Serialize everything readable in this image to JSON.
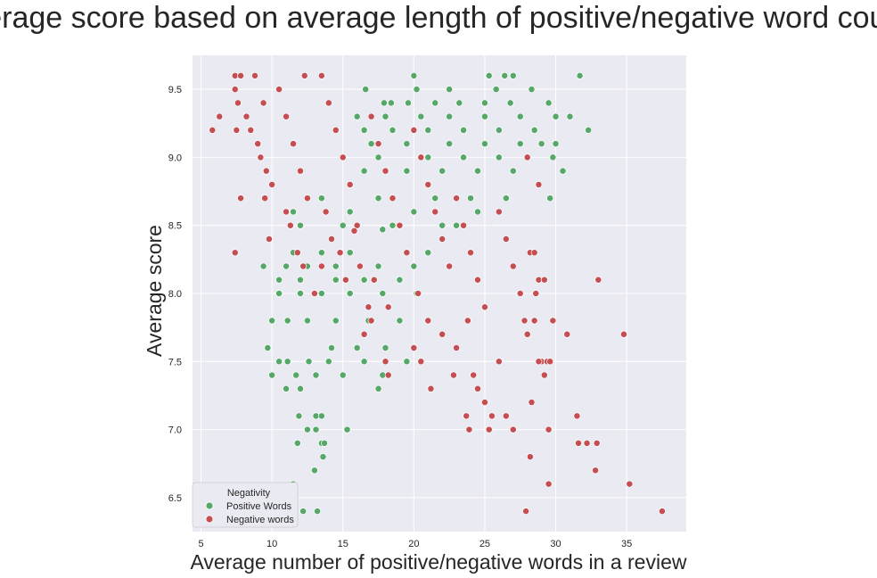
{
  "chart_data": {
    "type": "scatter",
    "title": "Average score based on average length of positive/negative word counts",
    "xlabel": "Average number of positive/negative words in a review",
    "ylabel": "Average score",
    "xlim": [
      4.4,
      39.2
    ],
    "ylim": [
      6.25,
      9.75
    ],
    "xticks": [
      5,
      10,
      15,
      20,
      25,
      30,
      35
    ],
    "yticks": [
      6.5,
      7.0,
      7.5,
      8.0,
      8.5,
      9.0,
      9.5
    ],
    "ytick_labels": [
      "6.5",
      "7.0",
      "7.5",
      "8.0",
      "8.5",
      "9.0",
      "9.5"
    ],
    "grid": true,
    "legend": {
      "title": "Negativity",
      "placement": "bottom-left",
      "entries": [
        "Positive Words",
        "Negative words"
      ]
    },
    "colors": {
      "Positive Words": "#55a868",
      "Negative words": "#c44e52",
      "plot_background": "#eaeaf2",
      "grid": "#ffffff"
    },
    "series": [
      {
        "name": "Positive Words",
        "points": [
          [
            10.0,
            6.5
          ],
          [
            11.2,
            6.4
          ],
          [
            12.2,
            6.4
          ],
          [
            13.2,
            6.4
          ],
          [
            11.5,
            6.6
          ],
          [
            13.0,
            6.7
          ],
          [
            13.6,
            6.8
          ],
          [
            13.5,
            6.9
          ],
          [
            11.8,
            6.9
          ],
          [
            13.7,
            6.9
          ],
          [
            12.5,
            7.0
          ],
          [
            13.1,
            7.0
          ],
          [
            15.3,
            7.0
          ],
          [
            11.9,
            7.1
          ],
          [
            13.1,
            7.1
          ],
          [
            13.5,
            7.1
          ],
          [
            11.0,
            7.3
          ],
          [
            12.0,
            7.3
          ],
          [
            17.5,
            7.3
          ],
          [
            10.0,
            7.4
          ],
          [
            11.7,
            7.4
          ],
          [
            13.1,
            7.4
          ],
          [
            15.0,
            7.4
          ],
          [
            17.8,
            7.4
          ],
          [
            9.7,
            7.6
          ],
          [
            14.2,
            7.6
          ],
          [
            16.0,
            7.6
          ],
          [
            18.0,
            7.6
          ],
          [
            10.5,
            7.5
          ],
          [
            11.1,
            7.5
          ],
          [
            12.6,
            7.5
          ],
          [
            14.0,
            7.5
          ],
          [
            16.5,
            7.5
          ],
          [
            19.5,
            7.5
          ],
          [
            10.0,
            7.8
          ],
          [
            11.1,
            7.8
          ],
          [
            12.5,
            7.8
          ],
          [
            14.5,
            7.8
          ],
          [
            16.8,
            7.8
          ],
          [
            19.0,
            7.8
          ],
          [
            10.5,
            8.0
          ],
          [
            12.0,
            8.0
          ],
          [
            13.5,
            8.0
          ],
          [
            15.5,
            8.0
          ],
          [
            17.8,
            8.0
          ],
          [
            20.2,
            8.0
          ],
          [
            10.5,
            8.1
          ],
          [
            12.0,
            8.1
          ],
          [
            14.5,
            8.1
          ],
          [
            16.5,
            8.1
          ],
          [
            19.0,
            8.1
          ],
          [
            9.4,
            8.2
          ],
          [
            11.0,
            8.2
          ],
          [
            12.5,
            8.2
          ],
          [
            14.5,
            8.2
          ],
          [
            17.5,
            8.2
          ],
          [
            20.0,
            8.2
          ],
          [
            11.5,
            8.3
          ],
          [
            13.5,
            8.3
          ],
          [
            15.5,
            8.3
          ],
          [
            17.8,
            8.47
          ],
          [
            21.0,
            8.3
          ],
          [
            12.0,
            8.5
          ],
          [
            15.0,
            8.5
          ],
          [
            18.5,
            8.5
          ],
          [
            22.0,
            8.5
          ],
          [
            23.0,
            8.5
          ],
          [
            11.5,
            8.6
          ],
          [
            15.5,
            8.6
          ],
          [
            20.0,
            8.6
          ],
          [
            24.5,
            8.6
          ],
          [
            13.5,
            8.7
          ],
          [
            17.5,
            8.7
          ],
          [
            21.5,
            8.7
          ],
          [
            24.0,
            8.7
          ],
          [
            26.5,
            8.7
          ],
          [
            29.6,
            8.7
          ],
          [
            16.5,
            8.9
          ],
          [
            19.5,
            8.9
          ],
          [
            22.0,
            8.9
          ],
          [
            24.5,
            8.9
          ],
          [
            27.0,
            8.9
          ],
          [
            30.5,
            8.9
          ],
          [
            17.5,
            9.0
          ],
          [
            21.0,
            9.0
          ],
          [
            23.5,
            9.0
          ],
          [
            26.0,
            9.0
          ],
          [
            29.8,
            9.0
          ],
          [
            17.0,
            9.1
          ],
          [
            19.5,
            9.1
          ],
          [
            22.5,
            9.1
          ],
          [
            25.0,
            9.1
          ],
          [
            27.5,
            9.1
          ],
          [
            29.0,
            9.1
          ],
          [
            30.0,
            9.1
          ],
          [
            32.3,
            9.2
          ],
          [
            16.5,
            9.2
          ],
          [
            18.5,
            9.2
          ],
          [
            21.0,
            9.2
          ],
          [
            23.5,
            9.2
          ],
          [
            26.0,
            9.2
          ],
          [
            28.5,
            9.2
          ],
          [
            16.0,
            9.3
          ],
          [
            18.0,
            9.3
          ],
          [
            20.5,
            9.3
          ],
          [
            22.5,
            9.3
          ],
          [
            25.0,
            9.3
          ],
          [
            27.5,
            9.3
          ],
          [
            30.0,
            9.3
          ],
          [
            31.0,
            9.3
          ],
          [
            17.9,
            9.4
          ],
          [
            18.4,
            9.4
          ],
          [
            19.6,
            9.4
          ],
          [
            21.5,
            9.4
          ],
          [
            23.2,
            9.4
          ],
          [
            25.0,
            9.4
          ],
          [
            26.8,
            9.4
          ],
          [
            29.5,
            9.4
          ],
          [
            16.6,
            9.5
          ],
          [
            20.2,
            9.5
          ],
          [
            22.5,
            9.5
          ],
          [
            25.8,
            9.5
          ],
          [
            28.3,
            9.5
          ],
          [
            20.0,
            9.6
          ],
          [
            25.3,
            9.6
          ],
          [
            26.4,
            9.6
          ],
          [
            27.0,
            9.6
          ],
          [
            31.7,
            9.6
          ]
        ]
      },
      {
        "name": "Negative words",
        "points": [
          [
            5.8,
            9.2
          ],
          [
            6.3,
            9.3
          ],
          [
            7.5,
            9.2
          ],
          [
            7.4,
            9.6
          ],
          [
            7.8,
            9.6
          ],
          [
            8.8,
            9.6
          ],
          [
            7.4,
            9.5
          ],
          [
            7.6,
            9.4
          ],
          [
            8.2,
            9.3
          ],
          [
            8.5,
            9.2
          ],
          [
            9.0,
            9.1
          ],
          [
            9.4,
            9.4
          ],
          [
            9.2,
            9.0
          ],
          [
            9.6,
            8.9
          ],
          [
            10.0,
            8.8
          ],
          [
            9.5,
            8.7
          ],
          [
            9.8,
            8.4
          ],
          [
            7.8,
            8.7
          ],
          [
            7.4,
            8.3
          ],
          [
            10.5,
            9.5
          ],
          [
            11.0,
            9.3
          ],
          [
            11.5,
            9.1
          ],
          [
            12.0,
            8.9
          ],
          [
            12.5,
            8.7
          ],
          [
            12.3,
            9.6
          ],
          [
            13.5,
            9.6
          ],
          [
            11.0,
            8.6
          ],
          [
            11.3,
            8.5
          ],
          [
            11.8,
            8.3
          ],
          [
            12.2,
            8.2
          ],
          [
            13.0,
            8.0
          ],
          [
            13.5,
            8.2
          ],
          [
            14.0,
            9.4
          ],
          [
            14.5,
            9.2
          ],
          [
            15.0,
            9.0
          ],
          [
            15.5,
            8.8
          ],
          [
            16.0,
            8.5
          ],
          [
            15.8,
            8.46
          ],
          [
            13.8,
            8.6
          ],
          [
            14.2,
            8.4
          ],
          [
            14.8,
            8.3
          ],
          [
            15.2,
            8.1
          ],
          [
            16.2,
            8.2
          ],
          [
            16.8,
            7.9
          ],
          [
            17.0,
            9.3
          ],
          [
            17.5,
            9.1
          ],
          [
            18.0,
            8.9
          ],
          [
            18.5,
            8.7
          ],
          [
            19.0,
            8.5
          ],
          [
            19.5,
            8.3
          ],
          [
            17.2,
            8.1
          ],
          [
            18.2,
            7.9
          ],
          [
            18.0,
            7.5
          ],
          [
            18.2,
            7.4
          ],
          [
            17.0,
            7.8
          ],
          [
            16.5,
            7.7
          ],
          [
            20.0,
            9.2
          ],
          [
            20.5,
            9.0
          ],
          [
            21.0,
            8.8
          ],
          [
            21.5,
            8.6
          ],
          [
            22.0,
            8.4
          ],
          [
            22.5,
            8.2
          ],
          [
            20.3,
            8.0
          ],
          [
            21.0,
            7.8
          ],
          [
            20.0,
            7.6
          ],
          [
            21.2,
            7.3
          ],
          [
            20.5,
            7.5
          ],
          [
            22.0,
            7.7
          ],
          [
            23.0,
            8.7
          ],
          [
            23.5,
            8.5
          ],
          [
            24.0,
            8.3
          ],
          [
            24.5,
            8.1
          ],
          [
            25.0,
            7.9
          ],
          [
            23.8,
            7.8
          ],
          [
            23.0,
            7.6
          ],
          [
            22.8,
            7.4
          ],
          [
            23.7,
            7.1
          ],
          [
            23.9,
            7.0
          ],
          [
            25.3,
            7.0
          ],
          [
            25.5,
            7.1
          ],
          [
            24.2,
            7.4
          ],
          [
            24.5,
            7.3
          ],
          [
            25.0,
            7.2
          ],
          [
            26.0,
            7.5
          ],
          [
            26.5,
            7.1
          ],
          [
            27.0,
            7.0
          ],
          [
            26.0,
            8.6
          ],
          [
            26.5,
            8.4
          ],
          [
            27.0,
            8.2
          ],
          [
            27.5,
            8.0
          ],
          [
            27.8,
            7.8
          ],
          [
            28.2,
            8.3
          ],
          [
            28.0,
            9.0
          ],
          [
            28.8,
            8.8
          ],
          [
            28.5,
            8.3
          ],
          [
            28.8,
            8.1
          ],
          [
            29.2,
            8.1
          ],
          [
            28.6,
            8.0
          ],
          [
            28.0,
            7.7
          ],
          [
            28.5,
            7.8
          ],
          [
            29.0,
            7.5
          ],
          [
            29.4,
            7.5
          ],
          [
            29.6,
            7.5
          ],
          [
            28.8,
            7.5
          ],
          [
            29.2,
            7.4
          ],
          [
            28.3,
            7.2
          ],
          [
            28.2,
            6.8
          ],
          [
            29.5,
            7.0
          ],
          [
            29.5,
            6.6
          ],
          [
            27.9,
            6.4
          ],
          [
            29.8,
            7.8
          ],
          [
            30.8,
            7.7
          ],
          [
            31.5,
            7.1
          ],
          [
            31.6,
            6.9
          ],
          [
            32.2,
            6.9
          ],
          [
            32.9,
            6.9
          ],
          [
            32.8,
            6.7
          ],
          [
            33.0,
            8.1
          ],
          [
            34.8,
            7.7
          ],
          [
            35.2,
            6.6
          ],
          [
            37.5,
            6.4
          ]
        ]
      }
    ]
  }
}
